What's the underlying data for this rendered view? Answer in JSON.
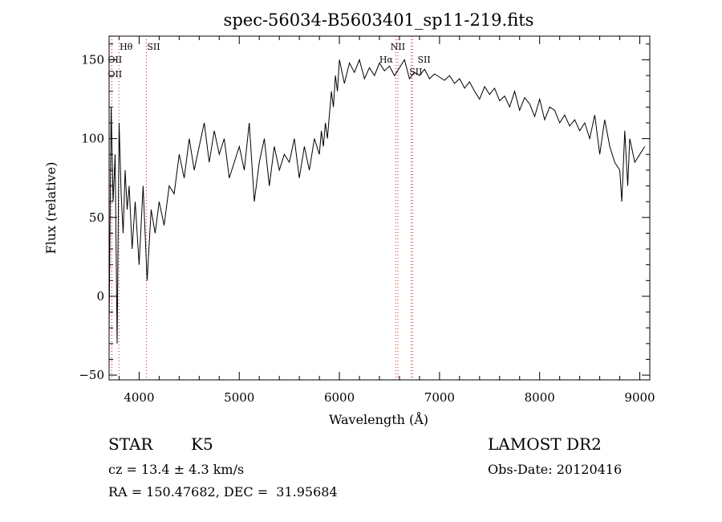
{
  "chart_data": {
    "type": "line",
    "title": "spec-56034-B5603401_sp11-219.fits",
    "xlabel": "Wavelength (Å)",
    "ylabel": "Flux (relative)",
    "xlim": [
      3700,
      9100
    ],
    "ylim": [
      -53,
      165
    ],
    "xticks": [
      4000,
      5000,
      6000,
      7000,
      8000,
      9000
    ],
    "yticks": [
      -50,
      0,
      50,
      100,
      150
    ],
    "grid": false,
    "legend": "none",
    "series": [
      {
        "color": "#000000",
        "x": [
          3700,
          3720,
          3740,
          3760,
          3780,
          3800,
          3820,
          3840,
          3860,
          3880,
          3900,
          3930,
          3960,
          4000,
          4040,
          4080,
          4120,
          4160,
          4200,
          4250,
          4300,
          4350,
          4400,
          4450,
          4500,
          4550,
          4600,
          4650,
          4700,
          4750,
          4800,
          4850,
          4900,
          4950,
          5000,
          5050,
          5100,
          5150,
          5200,
          5250,
          5300,
          5350,
          5400,
          5450,
          5500,
          5550,
          5600,
          5650,
          5700,
          5750,
          5800,
          5820,
          5840,
          5860,
          5880,
          5900,
          5920,
          5940,
          5960,
          5980,
          6000,
          6050,
          6100,
          6150,
          6200,
          6250,
          6300,
          6350,
          6400,
          6450,
          6500,
          6550,
          6600,
          6650,
          6700,
          6750,
          6800,
          6850,
          6900,
          6950,
          7000,
          7050,
          7100,
          7150,
          7200,
          7250,
          7300,
          7350,
          7400,
          7450,
          7500,
          7550,
          7600,
          7650,
          7700,
          7750,
          7800,
          7850,
          7900,
          7950,
          8000,
          8050,
          8100,
          8150,
          8200,
          8250,
          8300,
          8350,
          8400,
          8450,
          8500,
          8550,
          8600,
          8650,
          8700,
          8750,
          8800,
          8820,
          8850,
          8880,
          8900,
          8950,
          9000,
          9050
        ],
        "y": [
          -20,
          120,
          60,
          90,
          -30,
          110,
          65,
          40,
          80,
          55,
          70,
          30,
          60,
          20,
          70,
          10,
          55,
          40,
          60,
          45,
          70,
          65,
          90,
          75,
          100,
          80,
          95,
          110,
          85,
          105,
          90,
          100,
          75,
          85,
          95,
          80,
          110,
          60,
          85,
          100,
          70,
          95,
          80,
          90,
          85,
          100,
          75,
          95,
          80,
          100,
          90,
          105,
          95,
          110,
          100,
          115,
          130,
          120,
          140,
          130,
          150,
          135,
          148,
          142,
          150,
          138,
          145,
          140,
          148,
          143,
          146,
          140,
          145,
          150,
          138,
          142,
          140,
          144,
          138,
          141,
          139,
          137,
          140,
          135,
          138,
          132,
          136,
          130,
          125,
          133,
          128,
          132,
          124,
          127,
          120,
          130,
          118,
          126,
          122,
          114,
          125,
          112,
          120,
          118,
          110,
          115,
          108,
          112,
          105,
          110,
          100,
          115,
          90,
          112,
          95,
          85,
          80,
          60,
          105,
          70,
          100,
          85,
          90,
          95
        ]
      }
    ],
    "annotations": [
      {
        "label": "Hθ",
        "x": 3798
      },
      {
        "label": "OII",
        "x": 3727
      },
      {
        "label": "OII",
        "x": 3727
      },
      {
        "label": "SII",
        "x": 4072
      },
      {
        "label": "NII",
        "x": 6584
      },
      {
        "label": "Hα",
        "x": 6563
      },
      {
        "label": "SII",
        "x": 6717
      },
      {
        "label": "SII",
        "x": 6731
      }
    ]
  },
  "info": {
    "object_class": "STAR",
    "subclass": "K5",
    "redshift_line": "cz = 13.4 ± 4.3 km/s",
    "coords_line": "RA = 150.47682, DEC =  31.95684",
    "survey": "LAMOST DR2",
    "obs_date": "Obs-Date: 20120416"
  }
}
